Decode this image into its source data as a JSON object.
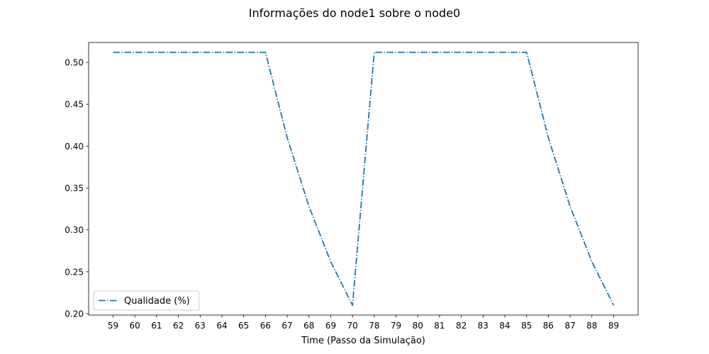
{
  "chart_data": {
    "type": "line",
    "title": "Informações do node1 sobre o node0",
    "xlabel": "Time (Passo da Simulação)",
    "ylabel": "",
    "categories": [
      "59",
      "60",
      "61",
      "62",
      "63",
      "64",
      "65",
      "66",
      "67",
      "68",
      "69",
      "70",
      "78",
      "79",
      "80",
      "81",
      "82",
      "83",
      "84",
      "85",
      "86",
      "87",
      "88",
      "89"
    ],
    "series": [
      {
        "name": "Qualidade (%)",
        "color": "#1f77b4",
        "line_style": "dashdot",
        "values": [
          0.512,
          0.512,
          0.512,
          0.512,
          0.512,
          0.512,
          0.512,
          0.512,
          0.41,
          0.328,
          0.262,
          0.21,
          0.512,
          0.512,
          0.512,
          0.512,
          0.512,
          0.512,
          0.512,
          0.512,
          0.41,
          0.328,
          0.262,
          0.21
        ]
      }
    ],
    "ylim": [
      0.1983,
      0.5237
    ],
    "yticks": [
      "0.20",
      "0.25",
      "0.30",
      "0.35",
      "0.40",
      "0.45",
      "0.50"
    ],
    "ytick_values": [
      0.2,
      0.25,
      0.3,
      0.35,
      0.4,
      0.45,
      0.5
    ],
    "grid": false,
    "legend_position": "lower-left"
  }
}
